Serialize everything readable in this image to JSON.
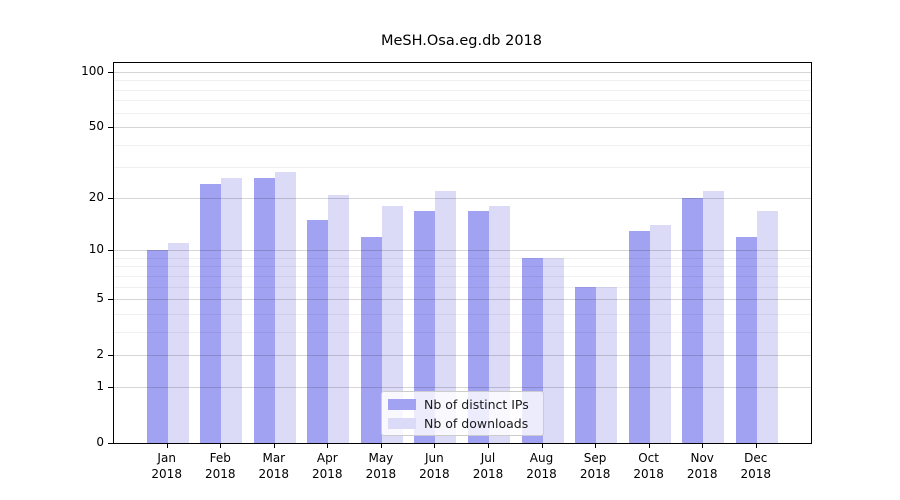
{
  "title": "MeSH.Osa.eg.db 2018",
  "colors": {
    "ips_bar": "#a2a2f2",
    "downloads_bar": "#dbdbf8",
    "axis": "#000000",
    "grid_major": "rgba(0,0,0,0.16)",
    "grid_minor": "rgba(0,0,0,0.06)"
  },
  "chart_data": {
    "type": "bar",
    "title": "MeSH.Osa.eg.db 2018",
    "categories": [
      "Jan",
      "Feb",
      "Mar",
      "Apr",
      "May",
      "Jun",
      "Jul",
      "Aug",
      "Sep",
      "Oct",
      "Nov",
      "Dec"
    ],
    "category_year": "2018",
    "series": [
      {
        "name": "Nb of distinct IPs",
        "color": "#a2a2f2",
        "values": [
          10,
          24,
          26,
          15,
          12,
          17,
          17,
          9,
          6,
          13,
          20,
          12
        ]
      },
      {
        "name": "Nb of downloads",
        "color": "#dbdbf8",
        "values": [
          11,
          26,
          28,
          21,
          18,
          22,
          18,
          9,
          6,
          14,
          22,
          17
        ]
      }
    ],
    "xlabel": "",
    "ylabel": "",
    "y_scale": "log10(1+y)",
    "ylim": [
      0,
      110
    ],
    "y_major_ticks": [
      0,
      1,
      2,
      5,
      10,
      20,
      50,
      100
    ],
    "y_minor_gridlines": [
      3,
      4,
      6,
      7,
      8,
      9,
      30,
      40,
      60,
      70,
      80,
      90
    ],
    "grid": true,
    "legend_position": "inside-bottom-center"
  }
}
